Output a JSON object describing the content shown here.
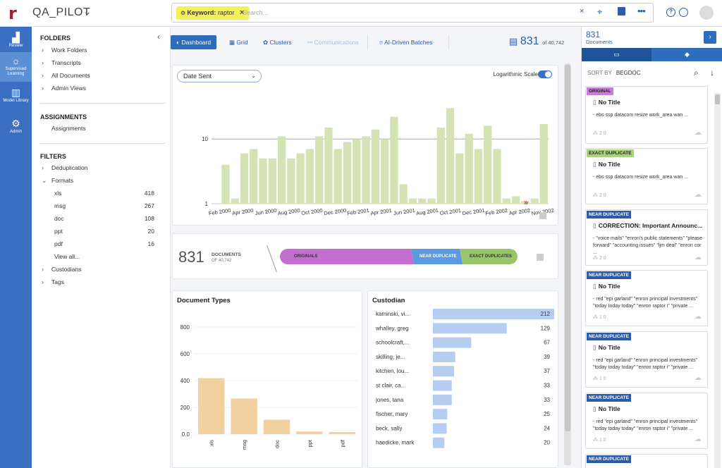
{
  "app": {
    "project_name": "QA_PILOT"
  },
  "search": {
    "chip_key": "Keyword:",
    "chip_value": "raptor",
    "placeholder": "Search..."
  },
  "rail": [
    {
      "label": "Review",
      "icon": "bar-chart-icon"
    },
    {
      "label": "Supervised Learning",
      "icon": "lightbulb-icon"
    },
    {
      "label": "Model Library",
      "icon": "books-icon"
    },
    {
      "label": "Admin",
      "icon": "gear-icon"
    }
  ],
  "sidebar": {
    "folders_title": "FOLDERS",
    "folders": [
      "Work Folders",
      "Transcripts",
      "All Documents",
      "Admin Views"
    ],
    "assignments_title": "ASSIGNMENTS",
    "assignments": [
      "Assignments"
    ],
    "filters_title": "FILTERS",
    "filters": {
      "deduplication": "Deduplication",
      "formats": "Formats",
      "format_items": [
        {
          "name": "xls",
          "count": "418"
        },
        {
          "name": "msg",
          "count": "267"
        },
        {
          "name": "doc",
          "count": "108"
        },
        {
          "name": "ppt",
          "count": "20"
        },
        {
          "name": "pdf",
          "count": "16"
        }
      ],
      "view_all": "View all...",
      "custodians": "Custodians",
      "tags": "Tags"
    }
  },
  "main": {
    "tabs": [
      "Dashboard",
      "Grid",
      "Clusters",
      "Communications",
      "AI-Driven Batches"
    ],
    "doc_count": "831",
    "doc_total": "of 40,742"
  },
  "timeline": {
    "dropdown_value": "Date Sent",
    "log_scale_label": "Logarithmic Scale"
  },
  "dedup": {
    "count": "831",
    "label": "DOCUMENTS",
    "of_total": "OF 40,742",
    "segments": [
      "ORIGINALS",
      "NEAR DUPLICATE",
      "EXACT DUPLICATES"
    ]
  },
  "doc_types": {
    "title": "Document Types"
  },
  "custodian": {
    "title": "Custodian"
  },
  "right_panel": {
    "count": "831",
    "count_label": "Documents",
    "sort_by_label": "SORT BY",
    "sort_by_value": "BEGDOC",
    "docs": [
      {
        "badge": "ORIGINAL",
        "type": "orig",
        "title": "No Title",
        "snippet": "- ebs ssp datacom resize work_area wan ...",
        "meta": "2  0"
      },
      {
        "badge": "EXACT DUPLICATE",
        "type": "exact",
        "title": "No Title",
        "snippet": "- ebs ssp datacom resize work_area wan ...",
        "meta": "2  0"
      },
      {
        "badge": "NEAR DUPLICATE",
        "type": "near",
        "title": "CORRECTION: Important Announc...",
        "snippet": "- \"voice mails\" \"enron's public statements\" \"please forward\" \"accounting issues\" \"ljm deal\" \"enron cor ...",
        "meta": "2  0"
      },
      {
        "badge": "NEAR DUPLICATE",
        "type": "near",
        "title": "No Title",
        "snippet": "- red \"epi garland\" \"enron principal investments\" \"today today today\" \"enron raptor i\" \"private ...",
        "meta": "1  0"
      },
      {
        "badge": "NEAR DUPLICATE",
        "type": "near",
        "title": "No Title",
        "snippet": "- red \"epi garland\" \"enron principal investments\" \"today today today\" \"enron raptor i\" \"private ...",
        "meta": "1  0"
      },
      {
        "badge": "NEAR DUPLICATE",
        "type": "near",
        "title": "No Title",
        "snippet": "- red \"epi garland\" \"enron principal investments\" \"today today today\" \"enron raptor i\" \"private ...",
        "meta": "1  0"
      },
      {
        "badge": "NEAR DUPLICATE",
        "type": "near",
        "title": "",
        "snippet": "",
        "meta": ""
      }
    ]
  },
  "colors": {
    "accent": "#2d6dbb",
    "rail": "#3a6fc1",
    "timeline_bar": "#d5e3b4",
    "doctype_bar": "#f1d1a0",
    "custodian_bar": "#b5cdf0",
    "originals": "#c26fcf",
    "near": "#5b9ae0",
    "exact": "#99c46a"
  },
  "chart_data": [
    {
      "type": "bar",
      "title": "",
      "xlabel": "",
      "ylabel": "",
      "log_scale": true,
      "ylim": [
        1,
        50
      ],
      "y_ticks": [
        "1",
        "10"
      ],
      "x_tick_labels": [
        "Feb 2000",
        "Apr 2000",
        "Jun 2000",
        "Aug 2000",
        "Oct 2000",
        "Dec 2000",
        "Feb 2001",
        "Apr 2001",
        "Jun 2001",
        "Aug 2001",
        "Oct 2001",
        "Dec 2001",
        "Feb 2002",
        "Apr 2002",
        "Nov 2002"
      ],
      "values": [
        0,
        4,
        1.2,
        6,
        7,
        5,
        5,
        11,
        5,
        6,
        7,
        11,
        15,
        7,
        9,
        10,
        11,
        14,
        10,
        22,
        2,
        1.2,
        1.2,
        1.2,
        15,
        30,
        6,
        12,
        7,
        16,
        7,
        1.2,
        1.3,
        1.1,
        1.2,
        17
      ]
    },
    {
      "type": "bar",
      "title": "Document Types",
      "categories": [
        "xls",
        "msg",
        "doc",
        "ppt",
        "pdf"
      ],
      "values": [
        418,
        267,
        108,
        20,
        16
      ],
      "y_ticks": [
        "0.0",
        "200",
        "400",
        "600",
        "800"
      ],
      "ylim": [
        0,
        900
      ]
    },
    {
      "type": "bar",
      "orientation": "horizontal",
      "title": "Custodian",
      "categories": [
        "kaminski, vi...",
        "whalley, greg",
        "schoolcraft,...",
        "skilling, je...",
        "kitchen, lou...",
        "st clair, ca...",
        "jones, tana",
        "fischer, mary",
        "beck, sally",
        "haedicke, mark"
      ],
      "values": [
        212,
        129,
        67,
        39,
        37,
        33,
        33,
        25,
        24,
        20
      ]
    }
  ]
}
